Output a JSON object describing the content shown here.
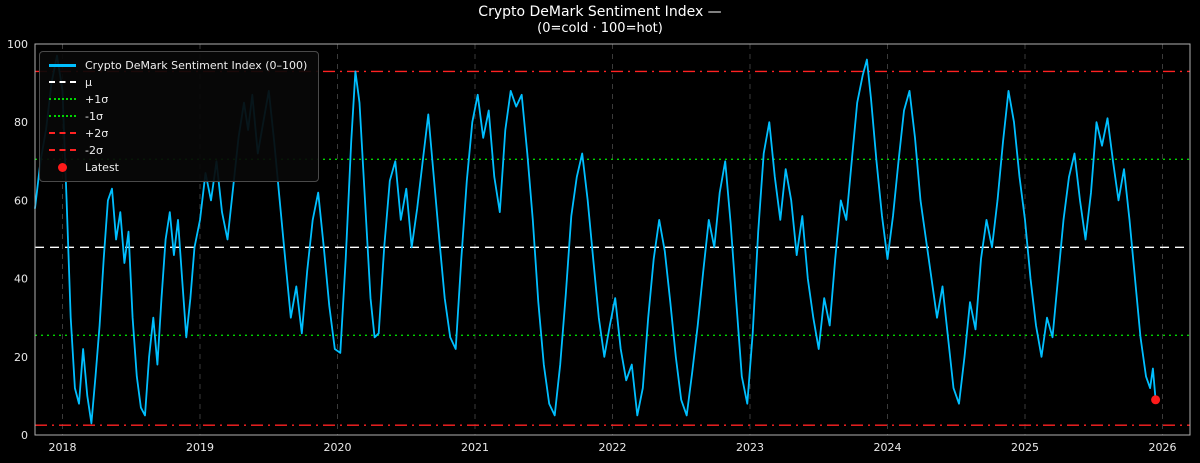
{
  "title": "Crypto DeMark Sentiment Index —",
  "subtitle": "(0=cold · 100=hot)",
  "legend": {
    "items": [
      {
        "label": "Crypto DeMark Sentiment Index (0–100)",
        "marker": "line",
        "style": "solid",
        "color": "#00BFFF"
      },
      {
        "label": "μ",
        "marker": "line",
        "style": "dashed",
        "color": "#ffffff"
      },
      {
        "label": "+1σ",
        "marker": "line",
        "style": "dotted",
        "color": "#00d400"
      },
      {
        "label": "-1σ",
        "marker": "line",
        "style": "dotted",
        "color": "#00d400"
      },
      {
        "label": "+2σ",
        "marker": "line",
        "style": "dashdot",
        "color": "#ff2222"
      },
      {
        "label": "-2σ",
        "marker": "line",
        "style": "dashdot",
        "color": "#ff2222"
      },
      {
        "label": "Latest",
        "marker": "dot",
        "style": "solid",
        "color": "#ff1a1a"
      }
    ]
  },
  "chart_data": {
    "type": "line",
    "title": "Crypto DeMark Sentiment Index —",
    "subtitle": "(0=cold · 100=hot)",
    "xlabel": "",
    "ylabel": "",
    "xlim": [
      2017.8,
      2026.2
    ],
    "ylim": [
      0,
      100
    ],
    "x_ticks": [
      2018,
      2019,
      2020,
      2021,
      2022,
      2023,
      2024,
      2025,
      2026
    ],
    "y_ticks": [
      0,
      20,
      40,
      60,
      80,
      100
    ],
    "grid": {
      "vertical": true,
      "style": "dashed",
      "color": "#3a3a3a"
    },
    "legend_position": "upper-left",
    "background": "#000000",
    "frame_color": "#b0b0b0",
    "reference_lines": [
      {
        "name": "mu",
        "label": "μ",
        "value": 48,
        "color": "#ffffff",
        "style": "dashed"
      },
      {
        "name": "plus1s",
        "label": "+1σ",
        "value": 70.5,
        "color": "#00d400",
        "style": "dotted"
      },
      {
        "name": "minus1s",
        "label": "-1σ",
        "value": 25.5,
        "color": "#00d400",
        "style": "dotted"
      },
      {
        "name": "plus2s",
        "label": "+2σ",
        "value": 93,
        "color": "#ff2222",
        "style": "dashdot"
      },
      {
        "name": "minus2s",
        "label": "-2σ",
        "value": 2.5,
        "color": "#ff2222",
        "style": "dashdot"
      }
    ],
    "latest": {
      "label": "Latest",
      "x": 2025.95,
      "y": 9,
      "color": "#ff1a1a"
    },
    "series": [
      {
        "name": "Crypto DeMark Sentiment Index (0–100)",
        "color": "#00BFFF",
        "points": [
          [
            2017.8,
            58
          ],
          [
            2017.84,
            70
          ],
          [
            2017.88,
            78
          ],
          [
            2017.92,
            90
          ],
          [
            2017.96,
            97
          ],
          [
            2018.0,
            88
          ],
          [
            2018.03,
            60
          ],
          [
            2018.06,
            30
          ],
          [
            2018.09,
            12
          ],
          [
            2018.12,
            8
          ],
          [
            2018.15,
            22
          ],
          [
            2018.18,
            10
          ],
          [
            2018.21,
            3
          ],
          [
            2018.24,
            15
          ],
          [
            2018.27,
            28
          ],
          [
            2018.3,
            45
          ],
          [
            2018.33,
            60
          ],
          [
            2018.36,
            63
          ],
          [
            2018.39,
            50
          ],
          [
            2018.42,
            57
          ],
          [
            2018.45,
            44
          ],
          [
            2018.48,
            52
          ],
          [
            2018.51,
            30
          ],
          [
            2018.54,
            15
          ],
          [
            2018.57,
            7
          ],
          [
            2018.6,
            5
          ],
          [
            2018.63,
            20
          ],
          [
            2018.66,
            30
          ],
          [
            2018.69,
            18
          ],
          [
            2018.72,
            35
          ],
          [
            2018.75,
            50
          ],
          [
            2018.78,
            57
          ],
          [
            2018.81,
            46
          ],
          [
            2018.84,
            55
          ],
          [
            2018.87,
            40
          ],
          [
            2018.9,
            25
          ],
          [
            2018.93,
            35
          ],
          [
            2018.96,
            48
          ],
          [
            2019.0,
            55
          ],
          [
            2019.04,
            67
          ],
          [
            2019.08,
            60
          ],
          [
            2019.12,
            70
          ],
          [
            2019.16,
            57
          ],
          [
            2019.2,
            50
          ],
          [
            2019.24,
            63
          ],
          [
            2019.28,
            76
          ],
          [
            2019.32,
            85
          ],
          [
            2019.35,
            78
          ],
          [
            2019.38,
            87
          ],
          [
            2019.42,
            72
          ],
          [
            2019.46,
            80
          ],
          [
            2019.5,
            88
          ],
          [
            2019.54,
            75
          ],
          [
            2019.58,
            60
          ],
          [
            2019.62,
            45
          ],
          [
            2019.66,
            30
          ],
          [
            2019.7,
            38
          ],
          [
            2019.74,
            26
          ],
          [
            2019.78,
            42
          ],
          [
            2019.82,
            55
          ],
          [
            2019.86,
            62
          ],
          [
            2019.9,
            48
          ],
          [
            2019.94,
            33
          ],
          [
            2019.98,
            22
          ],
          [
            2020.02,
            21
          ],
          [
            2020.06,
            45
          ],
          [
            2020.1,
            75
          ],
          [
            2020.13,
            93
          ],
          [
            2020.16,
            85
          ],
          [
            2020.2,
            60
          ],
          [
            2020.24,
            35
          ],
          [
            2020.27,
            25
          ],
          [
            2020.3,
            26
          ],
          [
            2020.34,
            48
          ],
          [
            2020.38,
            65
          ],
          [
            2020.42,
            70
          ],
          [
            2020.46,
            55
          ],
          [
            2020.5,
            63
          ],
          [
            2020.54,
            48
          ],
          [
            2020.58,
            58
          ],
          [
            2020.62,
            70
          ],
          [
            2020.66,
            82
          ],
          [
            2020.7,
            66
          ],
          [
            2020.74,
            50
          ],
          [
            2020.78,
            35
          ],
          [
            2020.82,
            25
          ],
          [
            2020.86,
            22
          ],
          [
            2020.9,
            45
          ],
          [
            2020.94,
            65
          ],
          [
            2020.98,
            80
          ],
          [
            2021.02,
            87
          ],
          [
            2021.06,
            76
          ],
          [
            2021.1,
            83
          ],
          [
            2021.14,
            66
          ],
          [
            2021.18,
            57
          ],
          [
            2021.22,
            78
          ],
          [
            2021.26,
            88
          ],
          [
            2021.3,
            84
          ],
          [
            2021.34,
            87
          ],
          [
            2021.38,
            72
          ],
          [
            2021.42,
            55
          ],
          [
            2021.46,
            34
          ],
          [
            2021.5,
            18
          ],
          [
            2021.54,
            8
          ],
          [
            2021.58,
            5
          ],
          [
            2021.62,
            18
          ],
          [
            2021.66,
            36
          ],
          [
            2021.7,
            56
          ],
          [
            2021.74,
            66
          ],
          [
            2021.78,
            72
          ],
          [
            2021.82,
            60
          ],
          [
            2021.86,
            45
          ],
          [
            2021.9,
            30
          ],
          [
            2021.94,
            20
          ],
          [
            2021.98,
            28
          ],
          [
            2022.02,
            35
          ],
          [
            2022.06,
            22
          ],
          [
            2022.1,
            14
          ],
          [
            2022.14,
            18
          ],
          [
            2022.18,
            5
          ],
          [
            2022.22,
            12
          ],
          [
            2022.26,
            30
          ],
          [
            2022.3,
            45
          ],
          [
            2022.34,
            55
          ],
          [
            2022.38,
            47
          ],
          [
            2022.42,
            34
          ],
          [
            2022.46,
            20
          ],
          [
            2022.5,
            9
          ],
          [
            2022.54,
            5
          ],
          [
            2022.58,
            16
          ],
          [
            2022.62,
            28
          ],
          [
            2022.66,
            42
          ],
          [
            2022.7,
            55
          ],
          [
            2022.74,
            48
          ],
          [
            2022.78,
            62
          ],
          [
            2022.82,
            70
          ],
          [
            2022.86,
            54
          ],
          [
            2022.9,
            34
          ],
          [
            2022.94,
            15
          ],
          [
            2022.98,
            8
          ],
          [
            2023.02,
            26
          ],
          [
            2023.06,
            52
          ],
          [
            2023.1,
            72
          ],
          [
            2023.14,
            80
          ],
          [
            2023.18,
            66
          ],
          [
            2023.22,
            55
          ],
          [
            2023.26,
            68
          ],
          [
            2023.3,
            60
          ],
          [
            2023.34,
            46
          ],
          [
            2023.38,
            56
          ],
          [
            2023.42,
            40
          ],
          [
            2023.46,
            30
          ],
          [
            2023.5,
            22
          ],
          [
            2023.54,
            35
          ],
          [
            2023.58,
            28
          ],
          [
            2023.62,
            45
          ],
          [
            2023.66,
            60
          ],
          [
            2023.7,
            55
          ],
          [
            2023.74,
            70
          ],
          [
            2023.78,
            85
          ],
          [
            2023.82,
            92
          ],
          [
            2023.85,
            96
          ],
          [
            2023.88,
            86
          ],
          [
            2023.92,
            70
          ],
          [
            2023.96,
            56
          ],
          [
            2024.0,
            45
          ],
          [
            2024.04,
            56
          ],
          [
            2024.08,
            70
          ],
          [
            2024.12,
            83
          ],
          [
            2024.16,
            88
          ],
          [
            2024.2,
            76
          ],
          [
            2024.24,
            60
          ],
          [
            2024.28,
            50
          ],
          [
            2024.32,
            40
          ],
          [
            2024.36,
            30
          ],
          [
            2024.4,
            38
          ],
          [
            2024.44,
            25
          ],
          [
            2024.48,
            12
          ],
          [
            2024.52,
            8
          ],
          [
            2024.56,
            20
          ],
          [
            2024.6,
            34
          ],
          [
            2024.64,
            27
          ],
          [
            2024.68,
            45
          ],
          [
            2024.72,
            55
          ],
          [
            2024.76,
            48
          ],
          [
            2024.8,
            60
          ],
          [
            2024.84,
            75
          ],
          [
            2024.88,
            88
          ],
          [
            2024.92,
            80
          ],
          [
            2024.96,
            66
          ],
          [
            2025.0,
            55
          ],
          [
            2025.04,
            40
          ],
          [
            2025.08,
            28
          ],
          [
            2025.12,
            20
          ],
          [
            2025.16,
            30
          ],
          [
            2025.2,
            25
          ],
          [
            2025.24,
            40
          ],
          [
            2025.28,
            55
          ],
          [
            2025.32,
            66
          ],
          [
            2025.36,
            72
          ],
          [
            2025.4,
            60
          ],
          [
            2025.44,
            50
          ],
          [
            2025.48,
            62
          ],
          [
            2025.52,
            80
          ],
          [
            2025.56,
            74
          ],
          [
            2025.6,
            81
          ],
          [
            2025.64,
            70
          ],
          [
            2025.68,
            60
          ],
          [
            2025.72,
            68
          ],
          [
            2025.76,
            55
          ],
          [
            2025.8,
            40
          ],
          [
            2025.84,
            25
          ],
          [
            2025.88,
            15
          ],
          [
            2025.91,
            12
          ],
          [
            2025.93,
            17
          ],
          [
            2025.95,
            9
          ]
        ]
      }
    ]
  }
}
